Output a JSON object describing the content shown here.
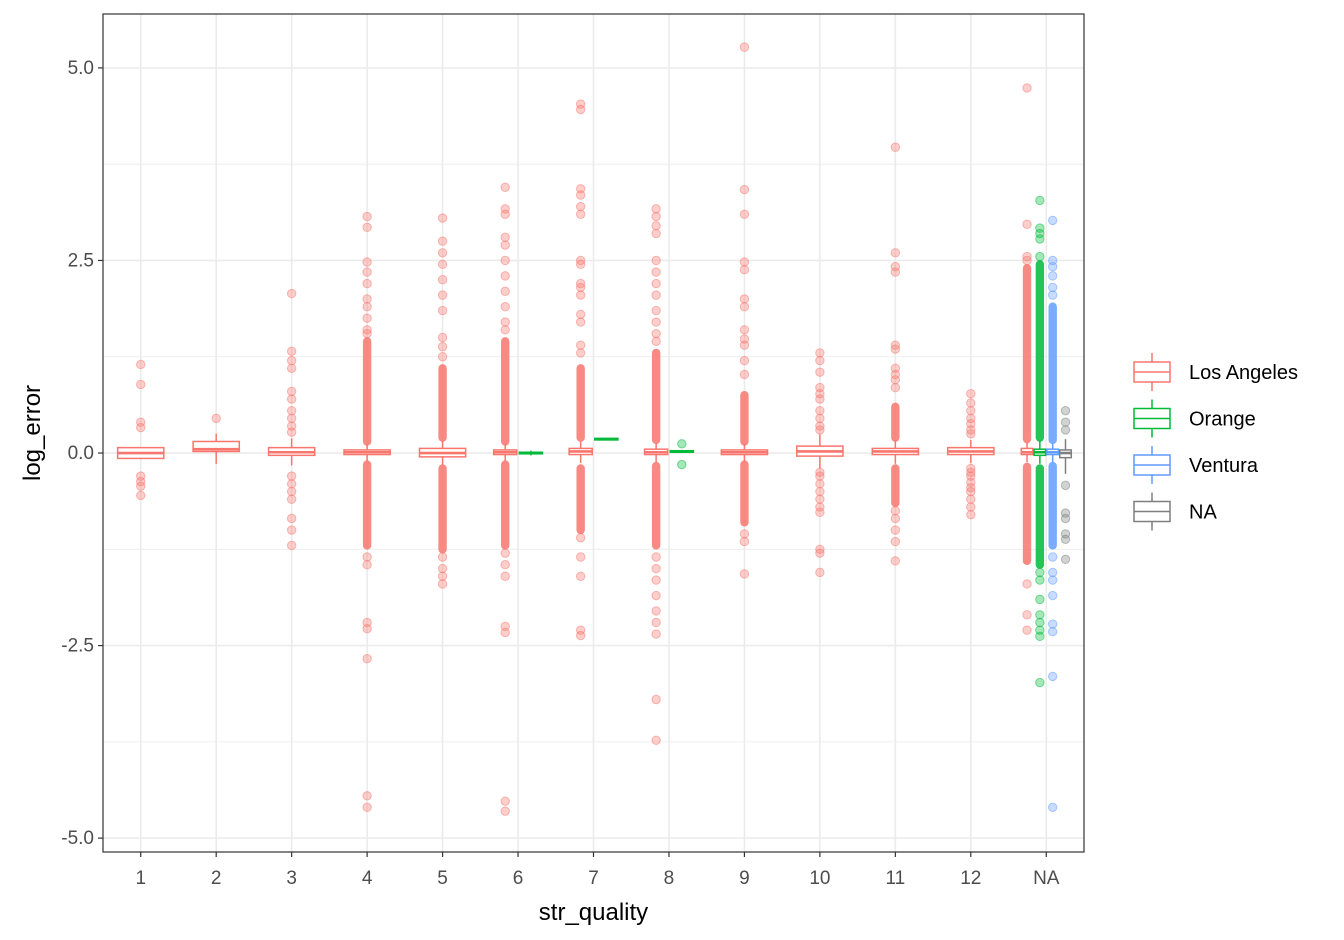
{
  "chart_data": {
    "type": "boxplot",
    "xlabel": "str_quality",
    "ylabel": "log_error",
    "categories": [
      "1",
      "2",
      "3",
      "4",
      "5",
      "6",
      "7",
      "8",
      "9",
      "10",
      "11",
      "12",
      "NA"
    ],
    "y_ticks": [
      5.0,
      2.5,
      0.0,
      -2.5,
      -5.0
    ],
    "y_tick_labels": [
      "5.0",
      "2.5",
      "0.0",
      "-2.5",
      "-5.0"
    ],
    "ylim": [
      -5.18,
      5.7
    ],
    "grid": true,
    "legend": {
      "position": "right",
      "entries": [
        {
          "label": "Los Angeles",
          "color": "#F8766D"
        },
        {
          "label": "Orange",
          "color": "#00BA38"
        },
        {
          "label": "Ventura",
          "color": "#619CFF"
        },
        {
          "label": "NA",
          "color": "#7F7F7F"
        }
      ]
    },
    "series": [
      {
        "name": "Los Angeles",
        "color": "#F8766D",
        "boxes": [
          {
            "category": "1",
            "n_groups": 1,
            "slot": 0,
            "q1": -0.07,
            "median": 0.0,
            "q3": 0.07,
            "whisker_low": -0.07,
            "whisker_high": 0.07,
            "outliers": [
              1.15,
              0.89,
              0.4,
              0.33,
              -0.3,
              -0.37,
              -0.43,
              -0.55
            ]
          },
          {
            "category": "2",
            "n_groups": 1,
            "slot": 0,
            "q1": 0.02,
            "median": 0.05,
            "q3": 0.15,
            "whisker_low": -0.14,
            "whisker_high": 0.25,
            "outliers": [
              0.45
            ]
          },
          {
            "category": "3",
            "n_groups": 1,
            "slot": 0,
            "q1": -0.03,
            "median": 0.01,
            "q3": 0.07,
            "whisker_low": -0.16,
            "whisker_high": 0.19,
            "outliers": [
              2.07,
              1.32,
              1.2,
              1.1,
              0.8,
              0.7,
              0.55,
              0.45,
              0.35,
              0.27,
              -0.3,
              -0.4,
              -0.5,
              -0.6,
              -0.85,
              -1.0,
              -1.2
            ]
          },
          {
            "category": "4",
            "n_groups": 1,
            "slot": 0,
            "q1": -0.02,
            "median": 0.01,
            "q3": 0.04,
            "whisker_low": -0.11,
            "whisker_high": 0.12,
            "outlier_band": [
              [
                0.15,
                1.45
              ],
              [
                -0.15,
                -1.2
              ]
            ],
            "outliers": [
              3.07,
              2.93,
              2.48,
              2.35,
              2.2,
              2.0,
              1.9,
              1.75,
              1.6,
              1.55,
              -1.35,
              -1.45,
              -2.2,
              -2.28,
              -2.67,
              -4.45,
              -4.6
            ]
          },
          {
            "category": "5",
            "n_groups": 1,
            "slot": 0,
            "q1": -0.05,
            "median": 0.0,
            "q3": 0.06,
            "whisker_low": -0.15,
            "whisker_high": 0.16,
            "outlier_band": [
              [
                0.2,
                1.1
              ],
              [
                -0.2,
                -1.25
              ]
            ],
            "outliers": [
              3.05,
              2.75,
              2.6,
              2.45,
              2.25,
              2.05,
              1.85,
              1.5,
              1.38,
              1.25,
              -1.35,
              -1.5,
              -1.6,
              -1.7
            ]
          },
          {
            "category": "6",
            "n_groups": 2,
            "slot": 0,
            "q1": -0.02,
            "median": 0.01,
            "q3": 0.04,
            "whisker_low": -0.11,
            "whisker_high": 0.12,
            "outlier_band": [
              [
                0.15,
                1.45
              ],
              [
                -0.15,
                -1.2
              ]
            ],
            "outliers": [
              3.45,
              3.17,
              3.1,
              2.8,
              2.7,
              2.5,
              2.3,
              2.1,
              1.9,
              1.7,
              1.6,
              -1.3,
              -1.45,
              -1.6,
              -2.25,
              -2.33,
              -4.52,
              -4.65
            ]
          },
          {
            "category": "7",
            "n_groups": 2,
            "slot": 0,
            "q1": -0.02,
            "median": 0.02,
            "q3": 0.06,
            "whisker_low": -0.13,
            "whisker_high": 0.15,
            "outlier_band": [
              [
                0.2,
                1.1
              ],
              [
                -0.2,
                -1.0
              ]
            ],
            "outliers": [
              4.53,
              4.46,
              3.43,
              3.35,
              3.2,
              3.1,
              2.5,
              2.45,
              2.2,
              2.15,
              2.05,
              1.8,
              1.7,
              1.4,
              1.3,
              -1.1,
              -1.35,
              -1.6,
              -2.3,
              -2.37
            ]
          },
          {
            "category": "8",
            "n_groups": 2,
            "slot": 0,
            "q1": -0.02,
            "median": 0.01,
            "q3": 0.05,
            "whisker_low": -0.12,
            "whisker_high": 0.13,
            "outlier_band": [
              [
                0.17,
                1.3
              ],
              [
                -0.17,
                -1.2
              ]
            ],
            "outliers": [
              3.17,
              3.07,
              2.95,
              2.85,
              2.5,
              2.35,
              2.2,
              2.05,
              1.85,
              1.7,
              1.55,
              1.45,
              -1.35,
              -1.5,
              -1.65,
              -1.85,
              -2.05,
              -2.2,
              -2.35,
              -3.2,
              -3.73
            ]
          },
          {
            "category": "9",
            "n_groups": 1,
            "slot": 0,
            "q1": -0.02,
            "median": 0.01,
            "q3": 0.04,
            "whisker_low": -0.11,
            "whisker_high": 0.12,
            "outlier_band": [
              [
                0.15,
                0.75
              ],
              [
                -0.15,
                -0.9
              ]
            ],
            "outliers": [
              5.27,
              3.42,
              3.1,
              2.48,
              2.38,
              2.0,
              1.9,
              1.6,
              1.48,
              1.4,
              1.2,
              1.02,
              -1.05,
              -1.15,
              -1.57
            ]
          },
          {
            "category": "10",
            "n_groups": 1,
            "slot": 0,
            "q1": -0.04,
            "median": 0.02,
            "q3": 0.09,
            "whisker_low": -0.2,
            "whisker_high": 0.24,
            "outliers": [
              1.3,
              1.2,
              1.05,
              0.85,
              0.77,
              0.7,
              0.55,
              0.45,
              0.35,
              0.3,
              -0.25,
              -0.3,
              -0.4,
              -0.5,
              -0.6,
              -0.7,
              -0.77,
              -1.25,
              -1.3,
              -1.55
            ]
          },
          {
            "category": "11",
            "n_groups": 1,
            "slot": 0,
            "q1": -0.02,
            "median": 0.02,
            "q3": 0.06,
            "whisker_low": -0.14,
            "whisker_high": 0.16,
            "outlier_band": [
              [
                0.2,
                0.6
              ],
              [
                -0.2,
                -0.65
              ]
            ],
            "outliers": [
              3.97,
              2.6,
              2.42,
              2.35,
              1.4,
              1.35,
              1.1,
              1.02,
              0.95,
              0.85,
              -0.75,
              -0.85,
              -1.0,
              -1.15,
              -1.4
            ]
          },
          {
            "category": "12",
            "n_groups": 1,
            "slot": 0,
            "q1": -0.02,
            "median": 0.02,
            "q3": 0.07,
            "whisker_low": -0.13,
            "whisker_high": 0.17,
            "outliers": [
              0.77,
              0.65,
              0.55,
              0.45,
              0.38,
              0.3,
              0.25,
              -0.2,
              -0.25,
              -0.3,
              -0.38,
              -0.45,
              -0.5,
              -0.6,
              -0.7,
              -0.8
            ]
          },
          {
            "category": "NA",
            "n_groups": 4,
            "slot": 0,
            "q1": -0.02,
            "median": 0.01,
            "q3": 0.06,
            "whisker_low": -0.12,
            "whisker_high": 0.14,
            "outlier_band": [
              [
                0.18,
                2.4
              ],
              [
                -0.18,
                -1.4
              ]
            ],
            "outliers": [
              4.74,
              2.97,
              2.55,
              2.5,
              -1.7,
              -2.1,
              -2.3
            ]
          }
        ]
      },
      {
        "name": "Orange",
        "color": "#00BA38",
        "boxes": [
          {
            "category": "6",
            "n_groups": 2,
            "slot": 1,
            "q1": -0.01,
            "median": 0.0,
            "q3": 0.01,
            "whisker_low": -0.03,
            "whisker_high": 0.03,
            "outliers": []
          },
          {
            "category": "7",
            "n_groups": 2,
            "slot": 1,
            "q1": 0.17,
            "median": 0.18,
            "q3": 0.19,
            "whisker_low": 0.17,
            "whisker_high": 0.19,
            "outliers": []
          },
          {
            "category": "8",
            "n_groups": 2,
            "slot": 1,
            "q1": 0.01,
            "median": 0.02,
            "q3": 0.03,
            "whisker_low": 0.0,
            "whisker_high": 0.04,
            "outliers": [
              0.12,
              -0.15
            ]
          },
          {
            "category": "NA",
            "n_groups": 4,
            "slot": 1,
            "q1": -0.03,
            "median": 0.01,
            "q3": 0.05,
            "whisker_low": -0.14,
            "whisker_high": 0.16,
            "outlier_band": [
              [
                0.2,
                2.45
              ],
              [
                -0.2,
                -1.45
              ]
            ],
            "outliers": [
              3.28,
              2.92,
              2.85,
              2.78,
              2.55,
              -1.55,
              -1.65,
              -1.9,
              -2.1,
              -2.2,
              -2.3,
              -2.38,
              -2.98
            ]
          }
        ]
      },
      {
        "name": "Ventura",
        "color": "#619CFF",
        "boxes": [
          {
            "category": "NA",
            "n_groups": 4,
            "slot": 2,
            "q1": -0.02,
            "median": 0.01,
            "q3": 0.05,
            "whisker_low": -0.12,
            "whisker_high": 0.13,
            "outlier_band": [
              [
                0.17,
                1.9
              ],
              [
                -0.17,
                -1.2
              ]
            ],
            "outliers": [
              3.02,
              2.5,
              2.42,
              2.3,
              2.15,
              2.05,
              -1.35,
              -1.55,
              -1.65,
              -1.85,
              -2.22,
              -2.32,
              -2.9,
              -4.6
            ]
          }
        ]
      },
      {
        "name": "NA",
        "color": "#7F7F7F",
        "boxes": [
          {
            "category": "NA",
            "n_groups": 4,
            "slot": 3,
            "q1": -0.06,
            "median": 0.0,
            "q3": 0.04,
            "whisker_low": -0.27,
            "whisker_high": 0.18,
            "outliers": [
              0.55,
              0.4,
              0.3,
              -0.42,
              -0.78,
              -0.85,
              -1.05,
              -1.12,
              -1.38
            ]
          }
        ]
      }
    ]
  }
}
